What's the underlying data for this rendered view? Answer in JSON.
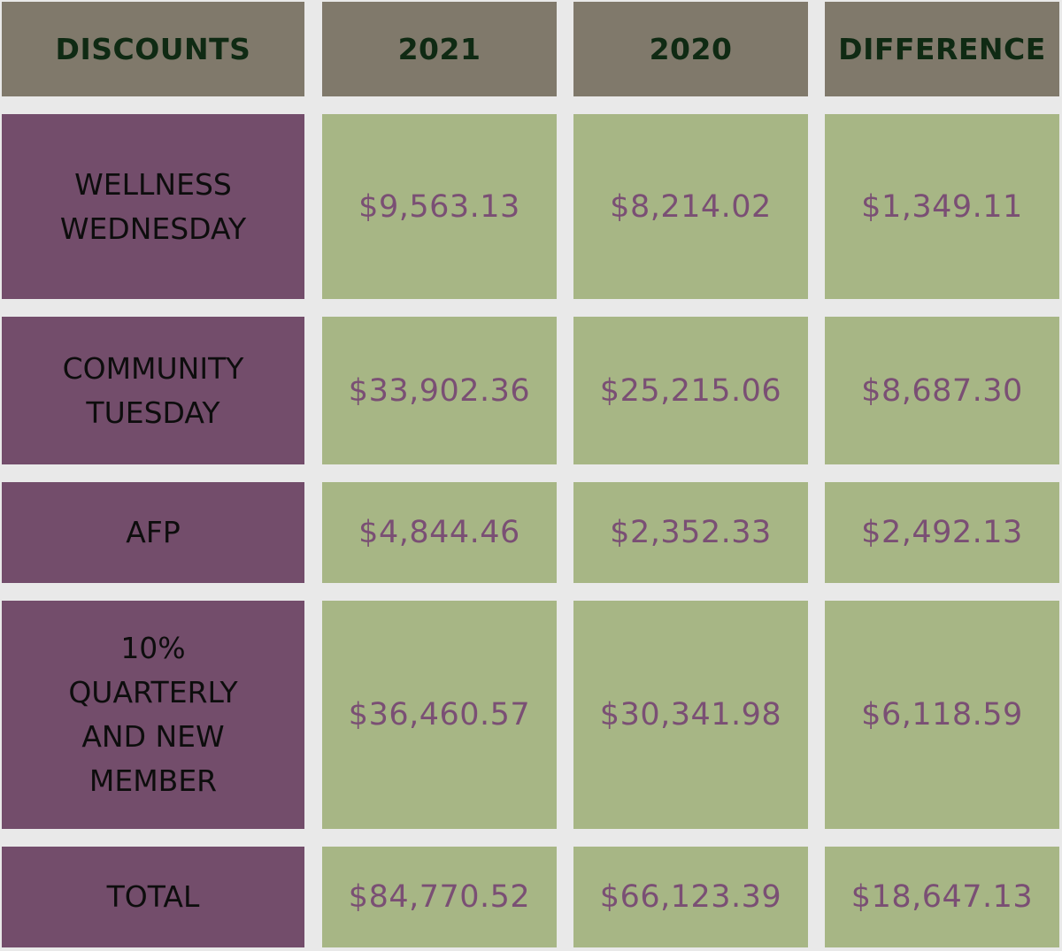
{
  "table": {
    "headers": [
      "DISCOUNTS",
      "2021",
      "2020",
      "DIFFERENCE"
    ],
    "rows": [
      {
        "label": [
          "WELLNESS",
          "WEDNESDAY"
        ],
        "y2021": "$9,563.13",
        "y2020": "$8,214.02",
        "difference": "$1,349.11"
      },
      {
        "label": [
          "COMMUNITY",
          "TUESDAY"
        ],
        "y2021": "$33,902.36",
        "y2020": "$25,215.06",
        "difference": "$8,687.30"
      },
      {
        "label": [
          "AFP"
        ],
        "y2021": "$4,844.46",
        "y2020": "$2,352.33",
        "difference": "$2,492.13"
      },
      {
        "label": [
          "10%",
          "QUARTERLY",
          "AND NEW",
          "MEMBER"
        ],
        "y2021": "$36,460.57",
        "y2020": "$30,341.98",
        "difference": "$6,118.59"
      },
      {
        "label": [
          "TOTAL"
        ],
        "y2021": "$84,770.52",
        "y2020": "$66,123.39",
        "difference": "$18,647.13"
      }
    ]
  },
  "colors": {
    "background": "#e9e9e9",
    "header_fill": "#80796b",
    "header_text": "#0f2a13",
    "label_fill": "#734d6b",
    "label_text": "#0d0d0d",
    "value_fill": "#a7b685",
    "value_text": "#7a4f74"
  }
}
